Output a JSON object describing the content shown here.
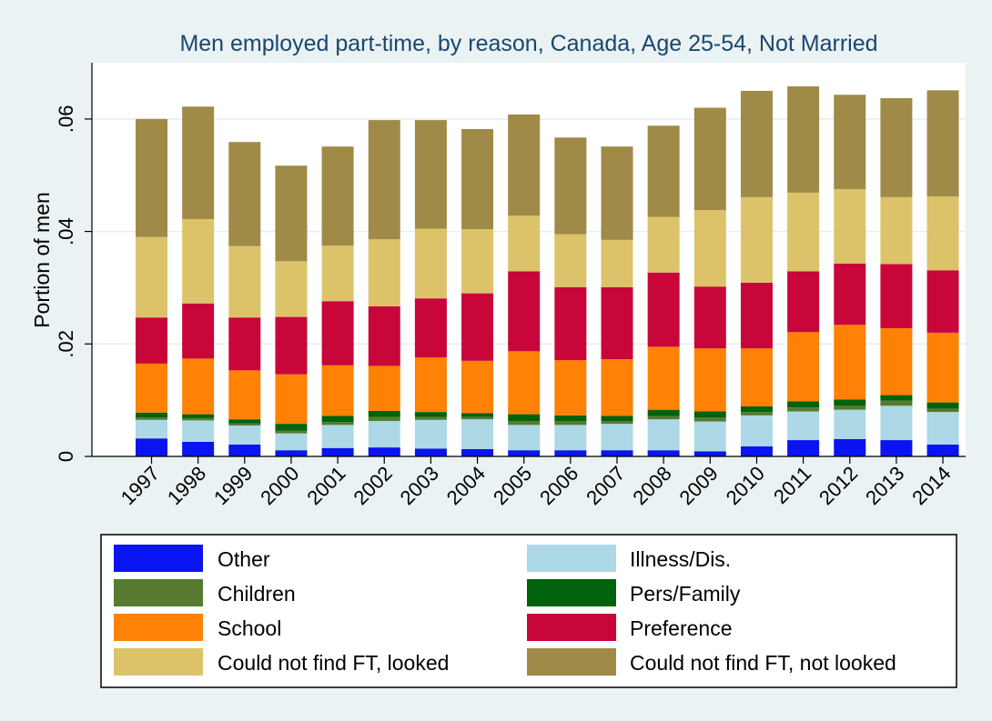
{
  "chart_data": {
    "type": "bar",
    "stacked": true,
    "title": "Men employed part-time, by reason, Canada, Age 25-54, Not Married",
    "ylabel": "Portion of men",
    "xlabel": "",
    "ylim": [
      0,
      0.07
    ],
    "yticks": [
      0,
      0.02,
      0.04,
      0.06
    ],
    "ytick_labels": [
      "0",
      ".02",
      ".04",
      ".06"
    ],
    "grid": true,
    "legend_position": "bottom",
    "categories": [
      "1997",
      "1998",
      "1999",
      "2000",
      "2001",
      "2002",
      "2003",
      "2004",
      "2005",
      "2006",
      "2007",
      "2008",
      "2009",
      "2010",
      "2011",
      "2012",
      "2013",
      "2014"
    ],
    "series": [
      {
        "name": "Other",
        "color": "#0a14f0",
        "values": [
          0.0032,
          0.0026,
          0.0021,
          0.0011,
          0.0015,
          0.0016,
          0.0014,
          0.0013,
          0.0011,
          0.0011,
          0.0011,
          0.0011,
          0.0009,
          0.0018,
          0.0029,
          0.0031,
          0.0029,
          0.0021
        ]
      },
      {
        "name": "Illness/Dis.",
        "color": "#add8e6",
        "values": [
          0.0033,
          0.0038,
          0.0034,
          0.003,
          0.0041,
          0.0047,
          0.0051,
          0.0053,
          0.0045,
          0.0045,
          0.0047,
          0.0055,
          0.0053,
          0.0055,
          0.0051,
          0.0052,
          0.0061,
          0.0058
        ]
      },
      {
        "name": "Children",
        "color": "#557a30",
        "values": [
          0.0004,
          0.0004,
          0.0004,
          0.0005,
          0.0005,
          0.0007,
          0.0005,
          0.0004,
          0.0007,
          0.0007,
          0.0005,
          0.0006,
          0.0007,
          0.0006,
          0.0007,
          0.0007,
          0.0009,
          0.0006
        ]
      },
      {
        "name": "Pers/Family",
        "color": "#00620a",
        "values": [
          0.0009,
          0.0007,
          0.0007,
          0.0012,
          0.0011,
          0.0011,
          0.0009,
          0.0007,
          0.0012,
          0.001,
          0.0009,
          0.0011,
          0.0011,
          0.001,
          0.0011,
          0.0011,
          0.001,
          0.0011
        ]
      },
      {
        "name": "School",
        "color": "#ff8105",
        "values": [
          0.0087,
          0.0099,
          0.0087,
          0.0088,
          0.009,
          0.008,
          0.0097,
          0.0093,
          0.0112,
          0.0098,
          0.0101,
          0.0112,
          0.0112,
          0.0103,
          0.0123,
          0.0133,
          0.0119,
          0.0124
        ]
      },
      {
        "name": "Preference",
        "color": "#c8063a",
        "values": [
          0.0082,
          0.0098,
          0.0094,
          0.0102,
          0.0114,
          0.0106,
          0.0105,
          0.012,
          0.0142,
          0.013,
          0.0128,
          0.0132,
          0.011,
          0.0117,
          0.0108,
          0.0109,
          0.0114,
          0.0111
        ]
      },
      {
        "name": "Could not find FT, looked",
        "color": "#dcc369",
        "values": [
          0.0143,
          0.015,
          0.0127,
          0.0099,
          0.0099,
          0.0119,
          0.0124,
          0.0114,
          0.0099,
          0.0094,
          0.0084,
          0.0099,
          0.0136,
          0.0152,
          0.014,
          0.0132,
          0.0119,
          0.0131
        ]
      },
      {
        "name": "Could not find FT, not looked",
        "color": "#a08a47",
        "values": [
          0.021,
          0.02,
          0.0185,
          0.017,
          0.0176,
          0.0212,
          0.0193,
          0.0178,
          0.018,
          0.0172,
          0.0166,
          0.0162,
          0.0182,
          0.0189,
          0.0189,
          0.0168,
          0.0176,
          0.0189
        ]
      }
    ]
  },
  "legend": {
    "rows": [
      [
        0,
        1
      ],
      [
        2,
        3
      ],
      [
        4,
        5
      ],
      [
        6,
        7
      ]
    ]
  }
}
